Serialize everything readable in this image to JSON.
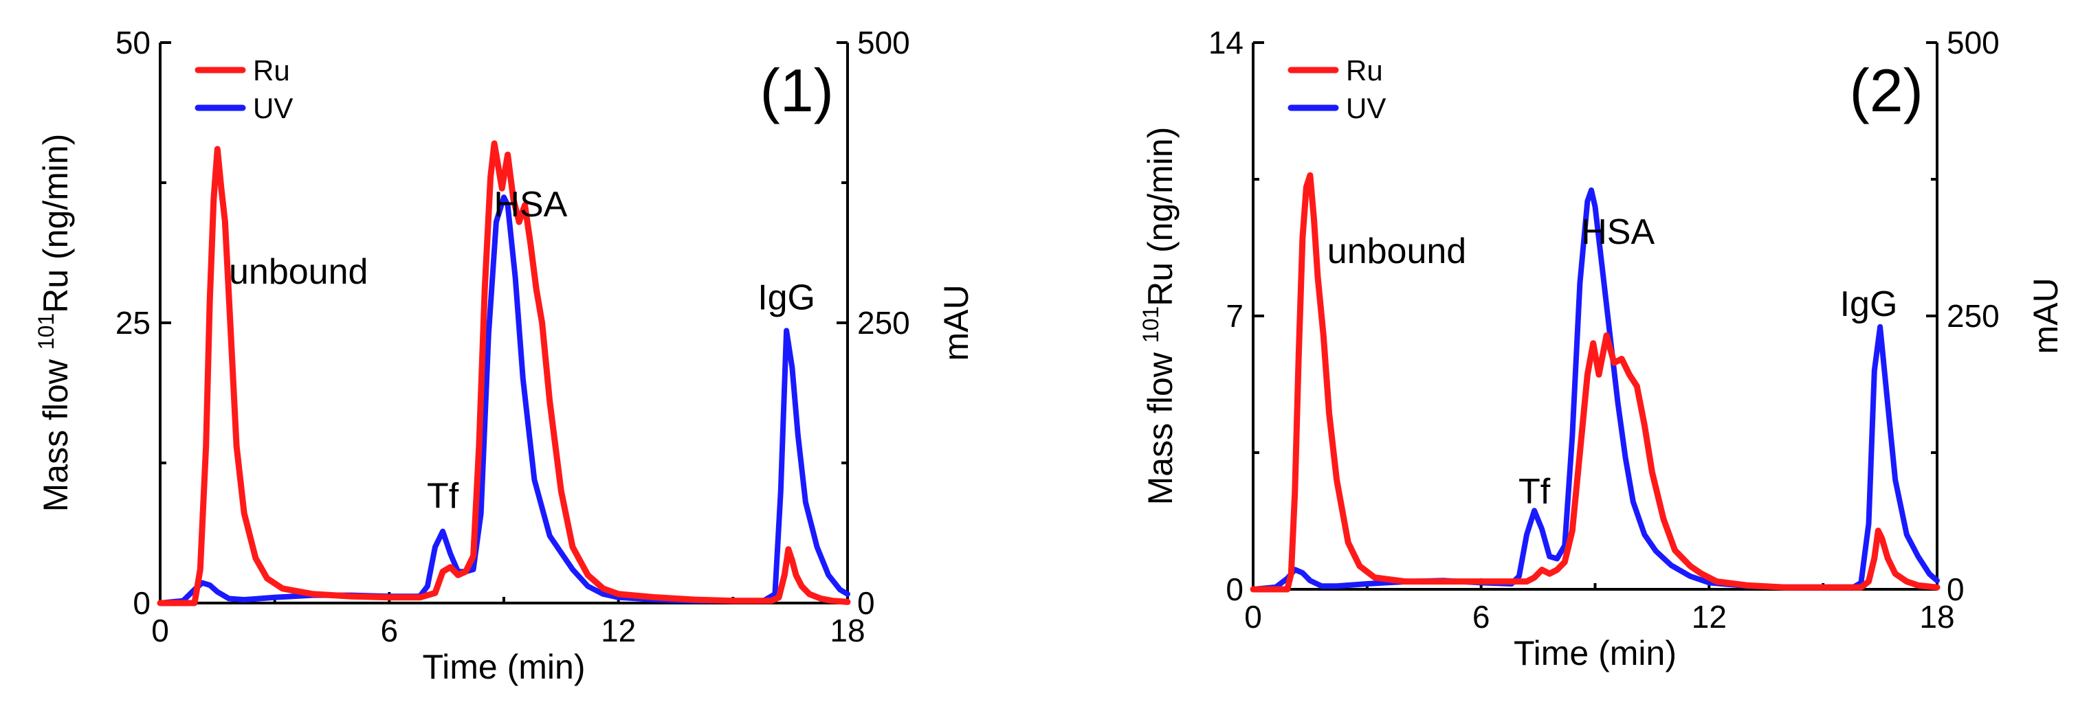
{
  "colors": {
    "ru": "#ff1a1a",
    "uv": "#1a1aff",
    "axis": "#000000"
  },
  "chart_data": [
    {
      "type": "line",
      "panel_label": "(1)",
      "xlabel": "Time (min)",
      "ylabel_prefix": "Mass flow ",
      "ylabel_sup": "101",
      "ylabel_suffix": "Ru (ng/min)",
      "y2label": "mAU",
      "xlim": [
        0,
        18
      ],
      "ylim": [
        0,
        50
      ],
      "y2lim": [
        0,
        500
      ],
      "xticks": [
        "0",
        "6",
        "12",
        "18"
      ],
      "yticks": [
        "0",
        "25",
        "50"
      ],
      "y2ticks": [
        "0",
        "250",
        "500"
      ],
      "legend": [
        "Ru",
        "UV"
      ],
      "annotations": [
        {
          "text": "unbound",
          "x": 1.8,
          "y": 28.5
        },
        {
          "text": "Tf",
          "x": 7.4,
          "y": 8.5
        },
        {
          "text": "HSA",
          "x": 9.7,
          "y": 34.5
        },
        {
          "text": "IgG",
          "x": 16.4,
          "y": 26.2
        }
      ],
      "series": [
        {
          "name": "Ru",
          "axis": "left",
          "x": [
            0,
            0.9,
            1.05,
            1.2,
            1.3,
            1.4,
            1.5,
            1.6,
            1.7,
            1.85,
            2.0,
            2.2,
            2.5,
            2.8,
            3.2,
            4.0,
            5.0,
            6.0,
            6.8,
            7.2,
            7.4,
            7.6,
            7.8,
            8.0,
            8.2,
            8.35,
            8.5,
            8.65,
            8.75,
            8.85,
            8.95,
            9.1,
            9.25,
            9.4,
            9.55,
            9.7,
            9.85,
            10.0,
            10.2,
            10.5,
            10.8,
            11.2,
            11.6,
            12.0,
            13.0,
            14.0,
            15.0,
            16.0,
            16.2,
            16.35,
            16.45,
            16.55,
            16.65,
            16.8,
            17.0,
            17.3,
            17.6,
            18.0
          ],
          "y": [
            0,
            0,
            3,
            14,
            27,
            36,
            40.5,
            37,
            34,
            24,
            14,
            8,
            4,
            2.2,
            1.3,
            0.8,
            0.6,
            0.5,
            0.5,
            0.9,
            2.8,
            3.2,
            2.5,
            2.8,
            4.2,
            14,
            28,
            38,
            41,
            39,
            37,
            40,
            36,
            34,
            35.5,
            32,
            28,
            25,
            18,
            10,
            5,
            2.5,
            1.3,
            0.8,
            0.5,
            0.3,
            0.2,
            0.2,
            0.5,
            2.5,
            4.8,
            3.8,
            2.5,
            1.5,
            0.8,
            0.4,
            0.2,
            0.1
          ]
        },
        {
          "name": "UV",
          "axis": "right",
          "x": [
            0,
            0.6,
            0.9,
            1.1,
            1.3,
            1.5,
            1.8,
            2.2,
            3.0,
            4.0,
            5.0,
            6.0,
            6.8,
            7.0,
            7.2,
            7.4,
            7.6,
            7.8,
            8.0,
            8.2,
            8.4,
            8.6,
            8.8,
            9.0,
            9.1,
            9.3,
            9.5,
            9.8,
            10.2,
            10.5,
            10.8,
            11.2,
            11.6,
            12.0,
            13.0,
            14.0,
            15.0,
            15.8,
            16.1,
            16.25,
            16.4,
            16.55,
            16.7,
            16.9,
            17.2,
            17.5,
            17.8,
            18.0
          ],
          "y": [
            0,
            2,
            12,
            18,
            16,
            10,
            4,
            3,
            5,
            7,
            7,
            6,
            6,
            15,
            50,
            64,
            44,
            28,
            28,
            30,
            80,
            240,
            340,
            362,
            355,
            290,
            200,
            110,
            60,
            45,
            30,
            15,
            8,
            5,
            3,
            2,
            2,
            2,
            8,
            100,
            243,
            210,
            150,
            90,
            50,
            25,
            12,
            8
          ]
        }
      ]
    },
    {
      "type": "line",
      "panel_label": "(2)",
      "xlabel": "Time (min)",
      "ylabel_prefix": "Mass flow ",
      "ylabel_sup": "101",
      "ylabel_suffix": "Ru (ng/min)",
      "y2label": "mAU",
      "xlim": [
        0,
        18
      ],
      "ylim": [
        0,
        14
      ],
      "y2lim": [
        0,
        500
      ],
      "xticks": [
        "0",
        "6",
        "12",
        "18"
      ],
      "yticks": [
        "0",
        "7",
        "14"
      ],
      "y2ticks": [
        "0",
        "250",
        "500"
      ],
      "legend": [
        "Ru",
        "UV"
      ],
      "annotations": [
        {
          "text": "unbound",
          "x": 1.95,
          "y": 8.35
        },
        {
          "text": "Tf",
          "x": 7.4,
          "y": 2.2
        },
        {
          "text": "HSA",
          "x": 9.6,
          "y": 8.85
        },
        {
          "text": "IgG",
          "x": 16.2,
          "y": 7.0
        }
      ],
      "series": [
        {
          "name": "Ru",
          "axis": "left",
          "x": [
            0,
            0.9,
            1.0,
            1.1,
            1.2,
            1.3,
            1.4,
            1.5,
            1.6,
            1.7,
            1.85,
            2.0,
            2.2,
            2.5,
            2.8,
            3.2,
            4.0,
            5.0,
            6.0,
            6.8,
            7.2,
            7.4,
            7.6,
            7.8,
            8.0,
            8.2,
            8.4,
            8.6,
            8.8,
            8.95,
            9.1,
            9.3,
            9.5,
            9.7,
            9.9,
            10.1,
            10.3,
            10.5,
            10.8,
            11.1,
            11.5,
            11.8,
            12.2,
            13.0,
            14.0,
            15.0,
            16.0,
            16.2,
            16.35,
            16.45,
            16.55,
            16.7,
            16.9,
            17.2,
            17.5,
            18.0
          ],
          "y": [
            0,
            0,
            0.4,
            2.5,
            6,
            9,
            10.3,
            10.6,
            9.5,
            8,
            6.5,
            4.5,
            2.8,
            1.2,
            0.6,
            0.3,
            0.2,
            0.2,
            0.2,
            0.2,
            0.2,
            0.3,
            0.5,
            0.4,
            0.5,
            0.7,
            1.5,
            3.5,
            5.5,
            6.3,
            5.5,
            6.5,
            5.8,
            5.9,
            5.5,
            5.2,
            4.2,
            3.0,
            1.8,
            1.0,
            0.6,
            0.4,
            0.2,
            0.1,
            0.05,
            0.05,
            0.05,
            0.2,
            0.8,
            1.5,
            1.3,
            0.8,
            0.4,
            0.2,
            0.1,
            0.05
          ]
        },
        {
          "name": "UV",
          "axis": "right",
          "x": [
            0,
            0.6,
            0.9,
            1.1,
            1.3,
            1.5,
            1.8,
            2.2,
            3.0,
            4.0,
            5.0,
            6.0,
            6.8,
            7.0,
            7.2,
            7.4,
            7.6,
            7.8,
            8.0,
            8.2,
            8.4,
            8.6,
            8.8,
            8.9,
            9.0,
            9.2,
            9.4,
            9.6,
            9.8,
            10.0,
            10.3,
            10.6,
            11.0,
            11.5,
            12.0,
            13.0,
            14.0,
            15.0,
            15.8,
            16.0,
            16.2,
            16.35,
            16.5,
            16.7,
            16.9,
            17.2,
            17.5,
            17.8,
            18.0
          ],
          "y": [
            0,
            2,
            10,
            18,
            15,
            8,
            3,
            3,
            5,
            7,
            8,
            6,
            5,
            12,
            50,
            72,
            55,
            30,
            28,
            40,
            140,
            280,
            355,
            365,
            350,
            290,
            230,
            170,
            120,
            80,
            50,
            35,
            22,
            12,
            6,
            3,
            2,
            2,
            2,
            6,
            60,
            200,
            240,
            170,
            100,
            50,
            30,
            14,
            8
          ]
        }
      ]
    }
  ]
}
